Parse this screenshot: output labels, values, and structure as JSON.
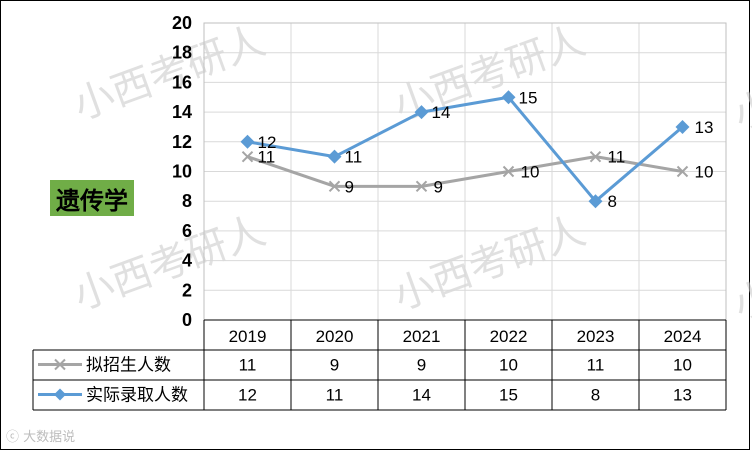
{
  "subject": "遗传学",
  "watermark": "小西考研人",
  "logo_text": "大数据说",
  "colors": {
    "grid": "#d9d9d9",
    "planned": "#a5a5a5",
    "actual": "#5b9bd5",
    "badge": "#70ad47"
  },
  "chart_data": {
    "type": "line",
    "categories": [
      "2019",
      "2020",
      "2021",
      "2022",
      "2023",
      "2024"
    ],
    "ylim": [
      0,
      20
    ],
    "y_ticks": [
      "0",
      "2",
      "4",
      "6",
      "8",
      "10",
      "12",
      "14",
      "16",
      "18",
      "20"
    ],
    "grid": true,
    "legend": "data-table",
    "series": [
      {
        "name": "拟招生人数",
        "values": [
          11,
          9,
          9,
          10,
          11,
          10
        ],
        "marker": "x"
      },
      {
        "name": "实际录取人数",
        "values": [
          12,
          11,
          14,
          15,
          8,
          13
        ],
        "marker": "diamond"
      }
    ]
  }
}
